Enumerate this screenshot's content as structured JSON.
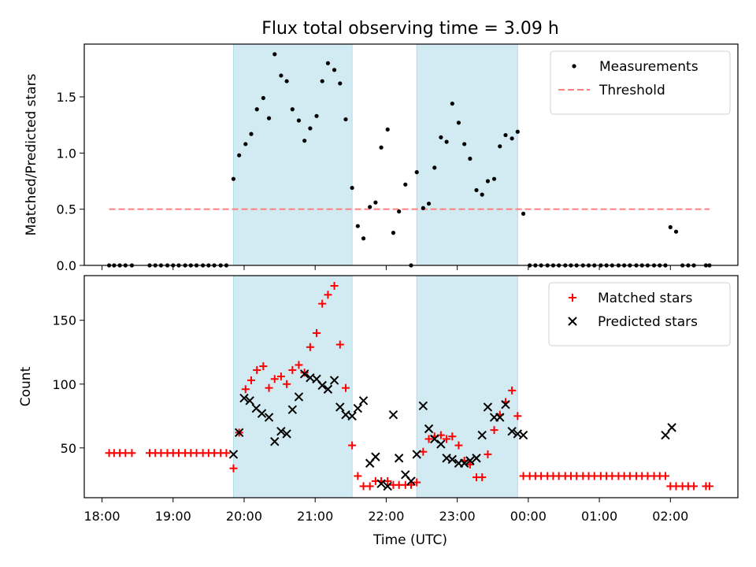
{
  "chart_data": {
    "title": "Flux total observing time = 3.09 h",
    "xlabel": "Time (UTC)",
    "x_range_hours": [
      17.75,
      26.95
    ],
    "x_ticks": [
      {
        "h": 18,
        "label": "18:00"
      },
      {
        "h": 19,
        "label": "19:00"
      },
      {
        "h": 20,
        "label": "20:00"
      },
      {
        "h": 21,
        "label": "21:00"
      },
      {
        "h": 22,
        "label": "22:00"
      },
      {
        "h": 23,
        "label": "23:00"
      },
      {
        "h": 24,
        "label": "00:00"
      },
      {
        "h": 25,
        "label": "01:00"
      },
      {
        "h": 26,
        "label": "02:00"
      }
    ],
    "shaded_intervals_hours": [
      [
        19.85,
        21.52
      ],
      [
        22.43,
        23.85
      ]
    ],
    "shade_color": "#add8e6",
    "panels": [
      {
        "type": "scatter",
        "ylabel": "Matched/Predicted stars",
        "ylim": [
          0,
          1.97
        ],
        "yticks": [
          {
            "v": 0,
            "label": "0.0"
          },
          {
            "v": 0.5,
            "label": "0.5"
          },
          {
            "v": 1.0,
            "label": "1.0"
          },
          {
            "v": 1.5,
            "label": "1.5"
          }
        ],
        "legend": {
          "position": "top-right",
          "entries": [
            {
              "label": "Measurements",
              "marker": "dot",
              "color": "#000000"
            },
            {
              "label": "Threshold",
              "marker": "dashed-line",
              "color": "#ff7f7f"
            }
          ]
        },
        "threshold": {
          "y": 0.5,
          "x0": 18.1,
          "x1": 26.55,
          "color": "#ff7f7f"
        },
        "series": [
          {
            "name": "Measurements",
            "color": "#000000",
            "x": [
              18.1,
              18.17,
              18.25,
              18.33,
              18.42,
              18.67,
              18.75,
              18.83,
              18.92,
              19.0,
              19.08,
              19.17,
              19.25,
              19.33,
              19.42,
              19.5,
              19.58,
              19.67,
              19.75,
              19.85,
              19.93,
              20.02,
              20.1,
              20.18,
              20.27,
              20.35,
              20.43,
              20.52,
              20.6,
              20.68,
              20.77,
              20.85,
              20.93,
              21.02,
              21.1,
              21.18,
              21.27,
              21.35,
              21.43,
              21.52,
              21.6,
              21.68,
              21.77,
              21.85,
              21.93,
              22.02,
              22.1,
              22.18,
              22.27,
              22.35,
              22.43,
              22.52,
              22.6,
              22.68,
              22.77,
              22.85,
              22.93,
              23.02,
              23.1,
              23.18,
              23.27,
              23.35,
              23.43,
              23.52,
              23.6,
              23.68,
              23.77,
              23.85,
              23.93,
              24.02,
              24.1,
              24.18,
              24.27,
              24.35,
              24.43,
              24.52,
              24.6,
              24.68,
              24.77,
              24.85,
              24.93,
              25.02,
              25.1,
              25.18,
              25.27,
              25.35,
              25.43,
              25.52,
              25.6,
              25.68,
              25.77,
              25.85,
              25.93,
              26.0,
              26.08,
              26.17,
              26.25,
              26.33,
              26.5,
              26.55
            ],
            "y": [
              0,
              0,
              0,
              0,
              0,
              0,
              0,
              0,
              0,
              0,
              0,
              0,
              0,
              0,
              0,
              0,
              0,
              0,
              0,
              0.77,
              0.98,
              1.08,
              1.17,
              1.39,
              1.49,
              1.31,
              1.88,
              1.69,
              1.64,
              1.39,
              1.29,
              1.11,
              1.22,
              1.33,
              1.64,
              1.8,
              1.74,
              1.62,
              1.3,
              0.69,
              0.35,
              0.24,
              0.52,
              0.56,
              1.05,
              1.21,
              0.29,
              0.48,
              0.72,
              0,
              0.83,
              0.51,
              0.55,
              0.87,
              1.14,
              1.1,
              1.44,
              1.27,
              1.08,
              0.95,
              0.67,
              0.63,
              0.75,
              0.77,
              1.06,
              1.16,
              1.13,
              1.19,
              0.46,
              0,
              0,
              0,
              0,
              0,
              0,
              0,
              0,
              0,
              0,
              0,
              0,
              0,
              0,
              0,
              0,
              0,
              0,
              0,
              0,
              0,
              0,
              0,
              0,
              0.34,
              0.3,
              0,
              0,
              0,
              0,
              0
            ]
          }
        ]
      },
      {
        "type": "scatter",
        "ylabel": "Count",
        "ylim": [
          11,
          185
        ],
        "yticks": [
          {
            "v": 50,
            "label": "50"
          },
          {
            "v": 100,
            "label": "100"
          },
          {
            "v": 150,
            "label": "150"
          }
        ],
        "legend": {
          "position": "top-right",
          "entries": [
            {
              "label": "Matched stars",
              "marker": "plus",
              "color": "#ff0000"
            },
            {
              "label": "Predicted stars",
              "marker": "x",
              "color": "#000000"
            }
          ]
        },
        "series": [
          {
            "name": "Matched stars",
            "marker": "plus",
            "color": "#ff0000",
            "x": [
              18.1,
              18.17,
              18.25,
              18.33,
              18.42,
              18.67,
              18.75,
              18.83,
              18.92,
              19.0,
              19.08,
              19.17,
              19.25,
              19.33,
              19.42,
              19.5,
              19.58,
              19.67,
              19.75,
              19.85,
              19.93,
              20.02,
              20.1,
              20.18,
              20.27,
              20.35,
              20.43,
              20.52,
              20.6,
              20.68,
              20.77,
              20.85,
              20.93,
              21.02,
              21.1,
              21.18,
              21.27,
              21.35,
              21.43,
              21.52,
              21.6,
              21.68,
              21.77,
              21.85,
              21.93,
              22.02,
              22.1,
              22.18,
              22.27,
              22.35,
              22.43,
              22.52,
              22.6,
              22.68,
              22.77,
              22.85,
              22.93,
              23.02,
              23.1,
              23.18,
              23.27,
              23.35,
              23.43,
              23.52,
              23.6,
              23.68,
              23.77,
              23.85,
              23.93,
              24.02,
              24.1,
              24.18,
              24.27,
              24.35,
              24.43,
              24.52,
              24.6,
              24.68,
              24.77,
              24.85,
              24.93,
              25.02,
              25.1,
              25.18,
              25.27,
              25.35,
              25.43,
              25.52,
              25.6,
              25.68,
              25.77,
              25.85,
              25.93,
              26.0,
              26.08,
              26.17,
              26.25,
              26.33,
              26.5,
              26.55
            ],
            "y": [
              46,
              46,
              46,
              46,
              46,
              46,
              46,
              46,
              46,
              46,
              46,
              46,
              46,
              46,
              46,
              46,
              46,
              46,
              46,
              34,
              62,
              96,
              103,
              111,
              114,
              97,
              104,
              106,
              100,
              111,
              115,
              109,
              129,
              140,
              163,
              170,
              177,
              131,
              97,
              52,
              28,
              20,
              20,
              24,
              24,
              24,
              21,
              21,
              21,
              21,
              23,
              47,
              57,
              59,
              60,
              57,
              59,
              52,
              40,
              37,
              27,
              27,
              45,
              64,
              76,
              86,
              95,
              75,
              28,
              28,
              28,
              28,
              28,
              28,
              28,
              28,
              28,
              28,
              28,
              28,
              28,
              28,
              28,
              28,
              28,
              28,
              28,
              28,
              28,
              28,
              28,
              28,
              28,
              20,
              20,
              20,
              20,
              20,
              20,
              20
            ]
          },
          {
            "name": "Predicted stars",
            "marker": "x",
            "color": "#000000",
            "x": [
              19.85,
              19.93,
              20.0,
              20.08,
              20.17,
              20.25,
              20.35,
              20.43,
              20.52,
              20.6,
              20.68,
              20.77,
              20.85,
              20.93,
              21.02,
              21.1,
              21.18,
              21.27,
              21.35,
              21.43,
              21.52,
              21.6,
              21.68,
              21.77,
              21.85,
              21.93,
              22.02,
              22.1,
              22.18,
              22.27,
              22.35,
              22.43,
              22.52,
              22.6,
              22.68,
              22.77,
              22.85,
              22.93,
              23.02,
              23.1,
              23.18,
              23.27,
              23.35,
              23.43,
              23.52,
              23.6,
              23.68,
              23.77,
              23.85,
              23.93,
              25.93,
              26.02
            ],
            "y": [
              45,
              62,
              89,
              87,
              81,
              77,
              74,
              55,
              63,
              61,
              80,
              90,
              108,
              105,
              104,
              99,
              96,
              103,
              82,
              76,
              75,
              81,
              87,
              38,
              43,
              22,
              20,
              76,
              42,
              29,
              24,
              45,
              83,
              65,
              57,
              53,
              42,
              41,
              38,
              38,
              40,
              42,
              60,
              82,
              74,
              74,
              84,
              63,
              61,
              60,
              60,
              66
            ]
          }
        ]
      }
    ]
  }
}
